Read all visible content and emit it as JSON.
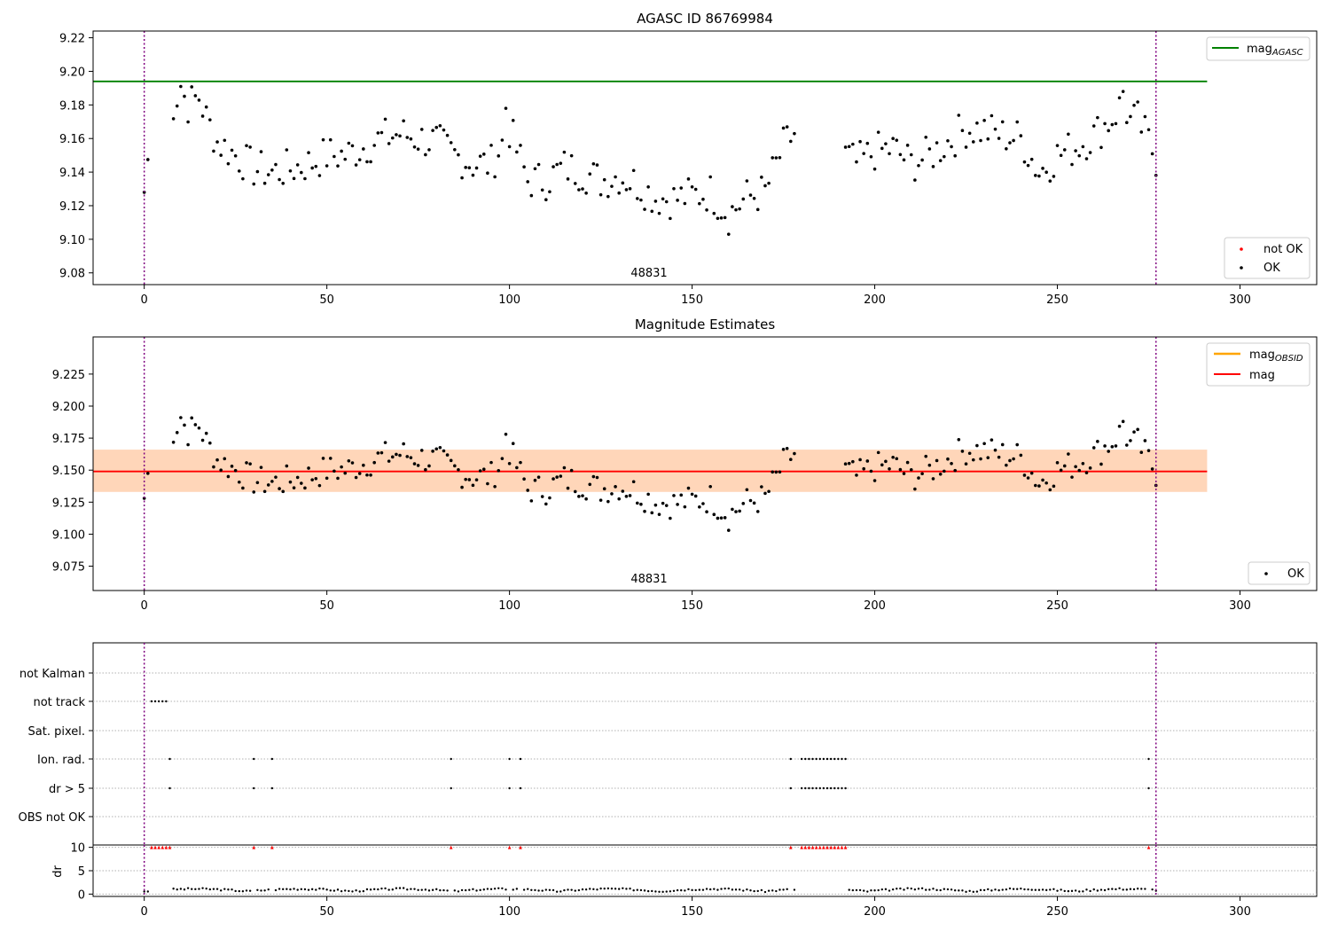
{
  "chart_data": [
    {
      "type": "scatter",
      "title": "AGASC ID 86769984",
      "annotation": "48831",
      "xlim": [
        -14,
        321
      ],
      "ylim": [
        9.073,
        9.224
      ],
      "xticks": [
        0,
        50,
        100,
        150,
        200,
        250,
        300
      ],
      "yticks": [
        9.08,
        9.1,
        9.12,
        9.14,
        9.16,
        9.18,
        9.2,
        9.22
      ],
      "ytick_decimals": 2,
      "grid": false,
      "vlines": [
        0,
        277
      ],
      "hline": {
        "y": 9.194,
        "x_range": [
          -14,
          291
        ],
        "color": "#008000",
        "label": "mag",
        "subscript": "AGASC"
      },
      "legend_upper": {
        "position": "top-right",
        "entries": [
          {
            "label": "mag",
            "subscript": "AGASC",
            "kind": "line",
            "color": "#008000"
          }
        ]
      },
      "legend_lower": {
        "position": "bottom-right",
        "entries": [
          {
            "label": "not OK",
            "kind": "point",
            "color": "#ff0000"
          },
          {
            "label": "OK",
            "kind": "point",
            "color": "#000000"
          }
        ]
      },
      "series": [
        {
          "name": "OK",
          "color": "#000000"
        }
      ]
    },
    {
      "type": "scatter",
      "title": "Magnitude Estimates",
      "annotation": "48831",
      "xlim": [
        -14,
        321
      ],
      "ylim": [
        9.056,
        9.254
      ],
      "xticks": [
        0,
        50,
        100,
        150,
        200,
        250,
        300
      ],
      "yticks": [
        9.075,
        9.1,
        9.125,
        9.15,
        9.175,
        9.2,
        9.225
      ],
      "ytick_decimals": 3,
      "grid": false,
      "vlines": [
        0,
        277
      ],
      "hline": {
        "y": 9.149,
        "x_range": [
          -14,
          291
        ],
        "color": "#ff0000",
        "label": "mag"
      },
      "bands": [
        {
          "y0": 9.133,
          "y1": 9.166,
          "x0": -14,
          "x1": 291,
          "color": "#ffc0cb",
          "opacity": 0.45
        },
        {
          "y0": 9.133,
          "y1": 9.166,
          "x0": -14,
          "x1": 291,
          "color": "#ffa500",
          "opacity": 0.2
        }
      ],
      "legend_upper": {
        "position": "top-right",
        "entries": [
          {
            "label": "mag",
            "subscript": "OBSID",
            "kind": "line",
            "color": "#ffa500"
          },
          {
            "label": "mag",
            "kind": "line",
            "color": "#ff0000"
          }
        ]
      },
      "legend_lower": {
        "position": "bottom-right",
        "entries": [
          {
            "label": "OK",
            "kind": "point",
            "color": "#000000"
          }
        ]
      },
      "series": [
        {
          "name": "OK",
          "color": "#000000"
        }
      ]
    },
    {
      "type": "scatter",
      "xlim": [
        -14,
        321
      ],
      "xticks": [
        0,
        50,
        100,
        150,
        200,
        250,
        300
      ],
      "categories": [
        "not Kalman",
        "not track",
        "Sat. pixel.",
        "Ion. rad.",
        "dr > 5",
        "OBS not OK"
      ],
      "vlines": [
        0,
        277
      ],
      "flag_points": {
        "not track": [
          2,
          3,
          4,
          5,
          6
        ],
        "Ion. rad.": [
          7,
          30,
          35,
          84,
          100,
          103,
          177,
          180,
          181,
          182,
          183,
          184,
          185,
          186,
          187,
          188,
          189,
          190,
          191,
          192,
          275
        ],
        "dr > 5": [
          7,
          30,
          35,
          84,
          100,
          103,
          177,
          180,
          181,
          182,
          183,
          184,
          185,
          186,
          187,
          188,
          189,
          190,
          191,
          192,
          275
        ]
      }
    },
    {
      "type": "scatter",
      "ylabel": "dr",
      "xlim": [
        -14,
        321
      ],
      "ylim": [
        -0.5,
        10.5
      ],
      "yticks": [
        0,
        5,
        10
      ],
      "xticks": [
        0,
        50,
        100,
        150,
        200,
        250,
        300
      ],
      "xticklabels": [
        "0",
        "50",
        "100",
        "150",
        "200",
        "250",
        "300"
      ],
      "vlines": [
        0,
        277
      ],
      "clipped_at_10": [
        2,
        3,
        4,
        5,
        6,
        7,
        30,
        35,
        84,
        100,
        103,
        177,
        180,
        181,
        182,
        183,
        184,
        185,
        186,
        187,
        188,
        189,
        190,
        191,
        192,
        275
      ]
    }
  ]
}
